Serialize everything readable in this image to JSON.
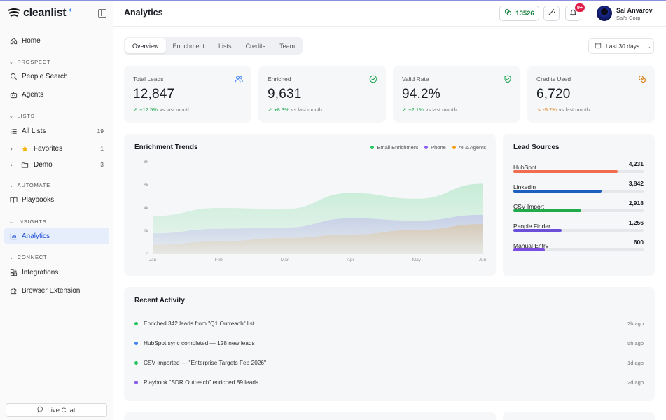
{
  "brand": {
    "name": "cleanlist"
  },
  "sidebar": {
    "home": "Home",
    "section_prospect": "PROSPECT",
    "people_search": "People Search",
    "agents": "Agents",
    "section_lists": "LISTS",
    "all_lists": {
      "label": "All Lists",
      "count": "19"
    },
    "favorites": {
      "label": "Favorites",
      "count": "1"
    },
    "demo": {
      "label": "Demo",
      "count": "3"
    },
    "section_automate": "AUTOMATE",
    "playbooks": "Playbooks",
    "section_insights": "INSIGHTS",
    "analytics": "Analytics",
    "section_connect": "CONNECT",
    "integrations": "Integrations",
    "browser_extension": "Browser Extension",
    "live_chat": "Live Chat"
  },
  "header": {
    "title": "Analytics",
    "credits": "13526",
    "notification_badge": "9+",
    "user_name": "Sal Anvarov",
    "user_org": "Sal's Corp"
  },
  "tabs": [
    "Overview",
    "Enrichment",
    "Lists",
    "Credits",
    "Team"
  ],
  "date_range": "Last 30 days",
  "stats": [
    {
      "label": "Total Leads",
      "value": "12,847",
      "change": "+12.5%",
      "suffix": "vs last month"
    },
    {
      "label": "Enriched",
      "value": "9,631",
      "change": "+8.3%",
      "suffix": "vs last month"
    },
    {
      "label": "Valid Rate",
      "value": "94.2%",
      "change": "+2.1%",
      "suffix": "vs last month"
    },
    {
      "label": "Credits Used",
      "value": "6,720",
      "change": "-5.2%",
      "suffix": "vs last month"
    }
  ],
  "trends": {
    "title": "Enrichment Trends",
    "legend": [
      "Email Enrichment",
      "Phone",
      "AI & Agents"
    ]
  },
  "chart_data": {
    "type": "area",
    "categories": [
      "Jan",
      "Feb",
      "Mar",
      "Apr",
      "May",
      "Jun"
    ],
    "y_ticks": [
      "0",
      "2k",
      "4k",
      "6k",
      "8k"
    ],
    "ylim": [
      0,
      8000
    ],
    "series": [
      {
        "name": "Email Enrichment",
        "color": "#22c55e",
        "values": [
          3300,
          4000,
          3900,
          5300,
          4800,
          6100
        ]
      },
      {
        "name": "Phone",
        "color": "#8b5cf6",
        "values": [
          1800,
          2200,
          2300,
          3100,
          2900,
          3400
        ]
      },
      {
        "name": "AI & Agents",
        "color": "#f59e0b",
        "values": [
          800,
          1100,
          1400,
          1700,
          2100,
          2600
        ]
      }
    ]
  },
  "lead_sources": {
    "title": "Lead Sources",
    "items": [
      {
        "name": "HubSpot",
        "value": "4,231",
        "fraction": 0.8,
        "color": "#f26d4f"
      },
      {
        "name": "LinkedIn",
        "value": "3,842",
        "fraction": 0.68,
        "color": "#1d5fbf"
      },
      {
        "name": "CSV Import",
        "value": "2,918",
        "fraction": 0.52,
        "color": "#1fab4a"
      },
      {
        "name": "People Finder",
        "value": "1,256",
        "fraction": 0.37,
        "color": "#6b4fd8"
      },
      {
        "name": "Manual Entry",
        "value": "600",
        "fraction": 0.24,
        "color": "#7c4de0"
      }
    ]
  },
  "activity": {
    "title": "Recent Activity",
    "items": [
      {
        "text": "Enriched 342 leads from \"Q1 Outreach\" list",
        "time": "2h ago",
        "color": "#22c55e"
      },
      {
        "text": "HubSpot sync completed — 128 new leads",
        "time": "5h ago",
        "color": "#3b82f6"
      },
      {
        "text": "CSV imported — \"Enterprise Targets Feb 2026\"",
        "time": "1d ago",
        "color": "#22c55e"
      },
      {
        "text": "Playbook \"SDR Outreach\" enriched 89 leads",
        "time": "2d ago",
        "color": "#8b5cf6"
      }
    ]
  }
}
